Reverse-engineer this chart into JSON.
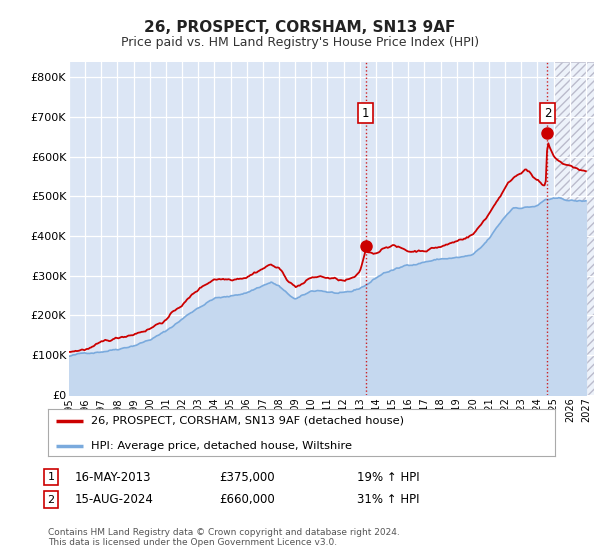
{
  "title": "26, PROSPECT, CORSHAM, SN13 9AF",
  "subtitle": "Price paid vs. HM Land Registry's House Price Index (HPI)",
  "legend_line1": "26, PROSPECT, CORSHAM, SN13 9AF (detached house)",
  "legend_line2": "HPI: Average price, detached house, Wiltshire",
  "marker1_date": "16-MAY-2013",
  "marker1_price": 375000,
  "marker1_label": "19% ↑ HPI",
  "marker2_date": "15-AUG-2024",
  "marker2_price": 660000,
  "marker2_label": "31% ↑ HPI",
  "footnote": "Contains HM Land Registry data © Crown copyright and database right 2024.\nThis data is licensed under the Open Government Licence v3.0.",
  "ylim": [
    0,
    840000
  ],
  "red_color": "#cc0000",
  "blue_color": "#7aaadd",
  "blue_fill": "#c5d8ef",
  "background_plot": "#dce6f5",
  "background_fig": "#ffffff",
  "marker1_x": 2013.37,
  "marker2_x": 2024.62,
  "hatch_start": 2025.0,
  "xlim_start": 1995.0,
  "xlim_end": 2027.5
}
